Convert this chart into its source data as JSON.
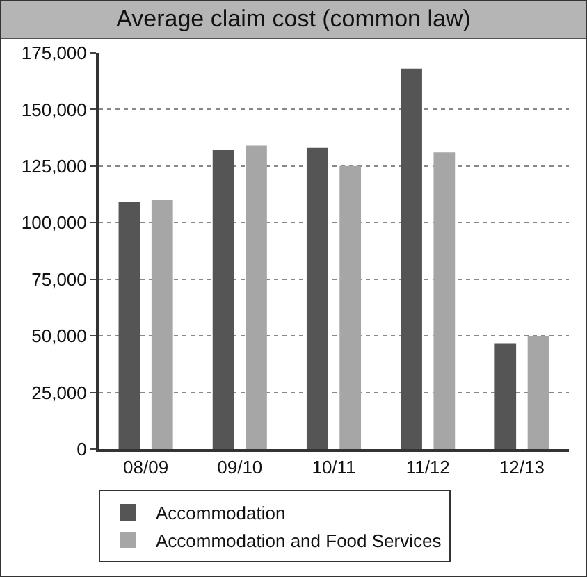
{
  "chart_data": {
    "type": "bar",
    "title": "Average claim cost (common law)",
    "categories": [
      "08/09",
      "09/10",
      "10/11",
      "11/12",
      "12/13"
    ],
    "series": [
      {
        "name": "Accommodation",
        "color": "#555555",
        "values": [
          109000,
          132000,
          133000,
          168000,
          46500
        ]
      },
      {
        "name": "Accommodation and Food Services",
        "color": "#a6a6a6",
        "values": [
          110000,
          134000,
          125000,
          131000,
          50000
        ]
      }
    ],
    "ylim": [
      0,
      175000
    ],
    "yticks": [
      {
        "value": 0,
        "label": "0"
      },
      {
        "value": 25000,
        "label": "25,000"
      },
      {
        "value": 50000,
        "label": "50,000"
      },
      {
        "value": 75000,
        "label": "75,000"
      },
      {
        "value": 100000,
        "label": "100,000"
      },
      {
        "value": 125000,
        "label": "125,000"
      },
      {
        "value": 150000,
        "label": "150,000"
      },
      {
        "value": 175000,
        "label": "175,000"
      }
    ],
    "grid": "y",
    "legend": "bottom"
  }
}
